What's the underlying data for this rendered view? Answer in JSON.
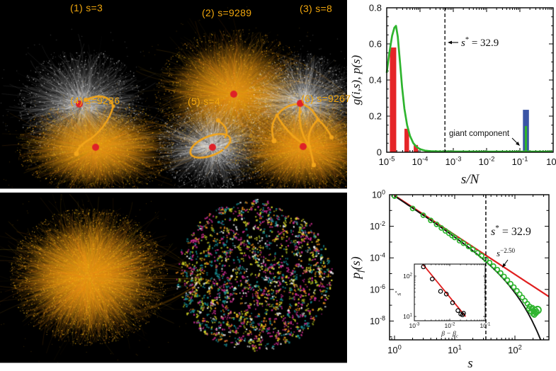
{
  "figure": {
    "background": "#ffffff",
    "panel_background": "#000000"
  },
  "networks_top": {
    "label_color": "#f0a60d",
    "colors": {
      "peripheral_network": "#ffffff",
      "merged_network": "#f5a21c",
      "seed_node": "#de2127",
      "highlight_path": "#f2a51a"
    },
    "items": [
      {
        "label": "(1) s=3",
        "variant": "white-highlight-arc"
      },
      {
        "label": "(2) s=9289",
        "variant": "orange-merged"
      },
      {
        "label": "(3) s=8",
        "variant": "white-highlight-web"
      },
      {
        "label": "(4) s=9236",
        "variant": "orange-merged"
      },
      {
        "label": "(5) s=4",
        "variant": "white-highlight-loop"
      },
      {
        "label": "(6) s=9267",
        "variant": "orange-merged"
      }
    ]
  },
  "networks_bottom": {
    "giant_component_color": "#f5a21c",
    "fragment_palette": [
      "#c92c8c",
      "#17858a",
      "#d6d428",
      "#e2891c",
      "#ececec",
      "#98a81e"
    ]
  },
  "chart_data": [
    {
      "type": "bar",
      "xlabel": "s/N",
      "ylabel": "g(i,s), p(s)",
      "x_scale": "log",
      "y_scale": "linear",
      "xlim": [
        1e-05,
        1
      ],
      "ylim": [
        0,
        0.8
      ],
      "x_tick_labels": [
        "10^-5",
        "10^-4",
        "10^-3",
        "10^-2",
        "10^-1",
        "10^0"
      ],
      "y_tick_labels": [
        "0",
        "0.2",
        "0.4",
        "0.6",
        "0.8"
      ],
      "bars": {
        "color": "#e52528",
        "series": [
          [
            1.55e-05,
            0.58,
            9
          ],
          [
            4e-05,
            0.13,
            6.5
          ],
          [
            7.5e-05,
            0.04,
            6
          ],
          [
            0.000155,
            0.01,
            5
          ]
        ]
      },
      "pdf_line": {
        "color": "#2eb42e",
        "points": [
          [
            1e-05,
            0.44
          ],
          [
            1.2e-05,
            0.55
          ],
          [
            1.45e-05,
            0.645
          ],
          [
            1.7e-05,
            0.69
          ],
          [
            1.9e-05,
            0.7
          ],
          [
            2.15e-05,
            0.64
          ],
          [
            2.5e-05,
            0.5
          ],
          [
            2.9e-05,
            0.36
          ],
          [
            3.4e-05,
            0.24
          ],
          [
            4.1e-05,
            0.15
          ],
          [
            5e-05,
            0.09
          ],
          [
            6.3e-05,
            0.05
          ],
          [
            8e-05,
            0.029
          ],
          [
            0.0001,
            0.017
          ],
          [
            0.00014,
            0.009
          ],
          [
            0.0002,
            0.006
          ],
          [
            0.0004,
            0.0042
          ],
          [
            0.001,
            0.0038
          ],
          [
            0.01,
            0.0036
          ],
          [
            0.1,
            0.0036
          ],
          [
            0.95,
            0.0036
          ]
        ]
      },
      "giant_component": {
        "annotation": "giant component",
        "blue_color": "#3a55a5",
        "green_color": "#2eb42e",
        "bar_blue": [
          0.152,
          0.235,
          8.5
        ],
        "bar_green": [
          0.152,
          0.145,
          3.2
        ]
      },
      "threshold_line": {
        "x_over_N": 0.00056,
        "label": {
          "base": "s",
          "sup": "*",
          "rest": " = 32.9"
        }
      }
    },
    {
      "type": "scatter",
      "xlabel": "s",
      "ylabel": {
        "base": "p",
        "sub": "f",
        "rest": "(s)"
      },
      "x_scale": "log",
      "y_scale": "log",
      "xlim": [
        1,
        367
      ],
      "ylim": [
        6.5e-10,
        1.1
      ],
      "x_tick_labels": [
        "10^0",
        "10^1",
        "10^2"
      ],
      "y_tick_labels": [
        "10^0",
        "10^-2",
        "10^-4",
        "10^-6",
        "10^-8"
      ],
      "scatter": {
        "color": "#2eb42e",
        "points": [
          [
            1,
            0.82
          ],
          [
            2,
            0.135
          ],
          [
            3,
            0.05
          ],
          [
            4,
            0.0235
          ],
          [
            5,
            0.0132
          ],
          [
            6,
            0.0078
          ],
          [
            7,
            0.0051
          ],
          [
            8,
            0.0036
          ],
          [
            9,
            0.0026
          ],
          [
            10,
            0.00195
          ],
          [
            12,
            0.00122
          ],
          [
            14,
            0.00084
          ],
          [
            17,
            0.00052
          ],
          [
            20,
            0.00034
          ],
          [
            24,
            0.00021
          ],
          [
            28,
            0.000135
          ],
          [
            33,
            7.8e-05
          ],
          [
            38,
            5e-05
          ],
          [
            44,
            3e-05
          ],
          [
            51,
            1.8e-05
          ],
          [
            58,
            1.1e-05
          ],
          [
            66,
            6.6e-06
          ],
          [
            75,
            3.9e-06
          ],
          [
            85,
            2.3e-06
          ],
          [
            96,
            1.4e-06
          ],
          [
            108,
            8.2e-07
          ],
          [
            120,
            5e-07
          ],
          [
            133,
            3.1e-07
          ],
          [
            147,
            1.9e-07
          ],
          [
            161,
            1.25e-07
          ],
          [
            170,
            6e-08
          ],
          [
            175,
            8.5e-08
          ],
          [
            185,
            4e-08
          ],
          [
            189,
            6e-08
          ],
          [
            195,
            7e-08
          ],
          [
            200,
            2.8e-08
          ],
          [
            203,
            4.5e-08
          ],
          [
            210,
            2.4e-08
          ],
          [
            214,
            3.6e-08
          ],
          [
            218,
            5.2e-08
          ],
          [
            224,
            3.1e-08
          ],
          [
            230,
            4e-08
          ]
        ],
        "big_point": [
          237,
          5e-08
        ]
      },
      "powerlaw_line": {
        "color": "#e01f1f",
        "amplitude": 0.9,
        "exponent": -2.5,
        "label": {
          "base": "s",
          "sup": "−2.50"
        }
      },
      "cutoff_line": {
        "color": "#111111",
        "amplitude": 0.85,
        "exponent": -2.5,
        "cutoff": 38
      },
      "threshold_line": {
        "x": 32.9,
        "label": {
          "base": "s",
          "sup": "*",
          "rest": " = 32.9"
        }
      },
      "inset": {
        "xlabel": {
          "base": "β − β",
          "sub": "c"
        },
        "ylabel": {
          "base": "s",
          "sup": "*"
        },
        "x_tick_labels": [
          "10^-3",
          "10^-2",
          "10^-1"
        ],
        "y_tick_labels": [
          "10^1",
          "10^2"
        ],
        "points": [
          [
            0.0018,
            170
          ],
          [
            0.0032,
            85
          ],
          [
            0.0055,
            42
          ],
          [
            0.008,
            36
          ],
          [
            0.012,
            22
          ],
          [
            0.017,
            14
          ],
          [
            0.0205,
            11.5
          ],
          [
            0.023,
            11
          ],
          [
            0.0245,
            12
          ]
        ],
        "fit_line": {
          "color": "#e01f1f",
          "from": [
            0.0015,
            230
          ],
          "to": [
            0.028,
            10
          ]
        }
      }
    }
  ]
}
